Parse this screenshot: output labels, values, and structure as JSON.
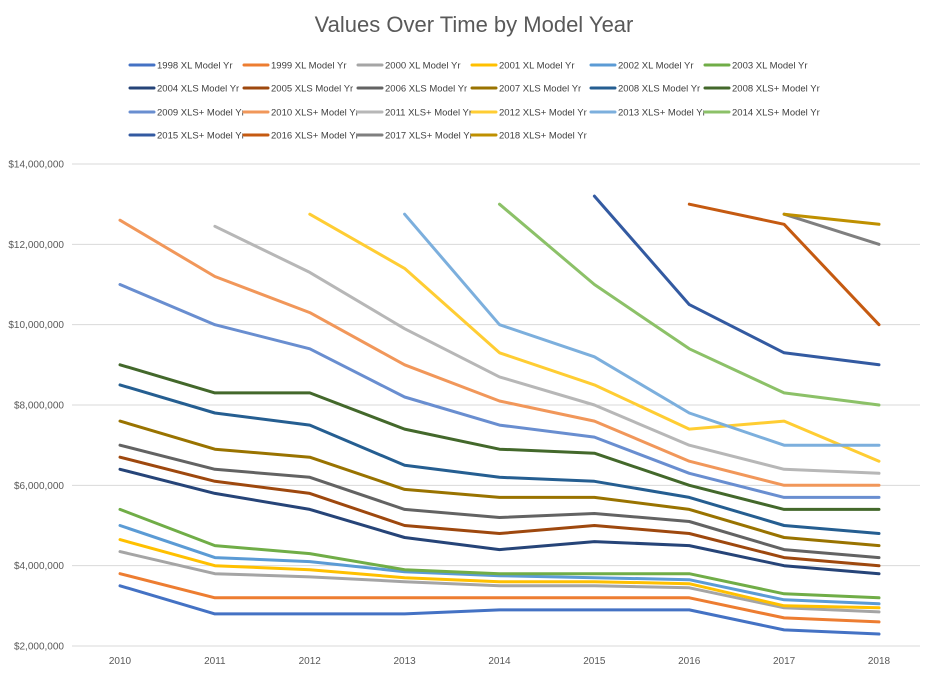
{
  "chart_data": {
    "type": "line",
    "title": "Values Over Time by Model Year",
    "xlabel": "",
    "ylabel": "",
    "x": [
      2010,
      2011,
      2012,
      2013,
      2014,
      2015,
      2016,
      2017,
      2018
    ],
    "x_tick_labels": [
      "2010",
      "2011",
      "2012",
      "2013",
      "2014",
      "2015",
      "2016",
      "2017",
      "2018"
    ],
    "ylim": [
      2000000,
      14000000
    ],
    "y_tick_labels": [
      "$2,000,000",
      "$4,000,000",
      "$6,000,000",
      "$8,000,000",
      "$10,000,000",
      "$12,000,000",
      "$14,000,000"
    ],
    "y_ticks": [
      2000000,
      4000000,
      6000000,
      8000000,
      10000000,
      12000000,
      14000000
    ],
    "grid": true,
    "legend_position": "top",
    "series": [
      {
        "name": "1998 XL Model Yr",
        "color": "#4472C4",
        "values": [
          3500000,
          2800000,
          2800000,
          2800000,
          2900000,
          2900000,
          2900000,
          2400000,
          2300000
        ]
      },
      {
        "name": "1999 XL Model Yr",
        "color": "#ED7D31",
        "values": [
          3800000,
          3200000,
          3200000,
          3200000,
          3200000,
          3200000,
          3200000,
          2700000,
          2600000
        ]
      },
      {
        "name": "2000 XL Model Yr",
        "color": "#A5A5A5",
        "values": [
          4350000,
          3800000,
          3720000,
          3600000,
          3500000,
          3500000,
          3450000,
          2950000,
          2850000
        ]
      },
      {
        "name": "2001 XL Model Yr",
        "color": "#FFC000",
        "values": [
          4650000,
          4000000,
          3900000,
          3700000,
          3600000,
          3600000,
          3550000,
          3000000,
          2950000
        ]
      },
      {
        "name": "2002 XL Model Yr",
        "color": "#5B9BD5",
        "values": [
          5000000,
          4200000,
          4100000,
          3850000,
          3750000,
          3700000,
          3650000,
          3150000,
          3050000
        ]
      },
      {
        "name": "2003 XL Model Yr",
        "color": "#70AD47",
        "values": [
          5400000,
          4500000,
          4300000,
          3900000,
          3800000,
          3800000,
          3800000,
          3300000,
          3200000
        ]
      },
      {
        "name": "2004 XLS Model Yr",
        "color": "#264478",
        "values": [
          6400000,
          5800000,
          5400000,
          4700000,
          4400000,
          4600000,
          4500000,
          4000000,
          3800000
        ]
      },
      {
        "name": "2005 XLS Model Yr",
        "color": "#9E480E",
        "values": [
          6700000,
          6100000,
          5800000,
          5000000,
          4800000,
          5000000,
          4800000,
          4200000,
          4000000
        ]
      },
      {
        "name": "2006 XLS Model Yr",
        "color": "#636363",
        "values": [
          7000000,
          6400000,
          6200000,
          5400000,
          5200000,
          5300000,
          5100000,
          4400000,
          4200000
        ]
      },
      {
        "name": "2007 XLS Model Yr",
        "color": "#997300",
        "values": [
          7600000,
          6900000,
          6700000,
          5900000,
          5700000,
          5700000,
          5400000,
          4700000,
          4500000
        ]
      },
      {
        "name": "2008 XLS Model Yr",
        "color": "#255E91",
        "values": [
          8500000,
          7800000,
          7500000,
          6500000,
          6200000,
          6100000,
          5700000,
          5000000,
          4800000
        ]
      },
      {
        "name": "2008 XLS+ Model Yr",
        "color": "#43682B",
        "values": [
          9000000,
          8300000,
          8300000,
          7400000,
          6900000,
          6800000,
          6000000,
          5400000,
          5400000
        ]
      },
      {
        "name": "2009 XLS+ Model Yr",
        "color": "#698ED0",
        "values": [
          11000000,
          10000000,
          9400000,
          8200000,
          7500000,
          7200000,
          6300000,
          5700000,
          5700000
        ]
      },
      {
        "name": "2010 XLS+ Model Yr",
        "color": "#F1975A",
        "values": [
          12600000,
          11200000,
          10300000,
          9000000,
          8100000,
          7600000,
          6600000,
          6000000,
          6000000
        ]
      },
      {
        "name": "2011 XLS+ Model Yr",
        "color": "#B7B7B7",
        "values": [
          null,
          12450000,
          11300000,
          9900000,
          8700000,
          8000000,
          7000000,
          6400000,
          6300000
        ]
      },
      {
        "name": "2012 XLS+ Model Yr",
        "color": "#FFCD33",
        "values": [
          null,
          null,
          12750000,
          11400000,
          9300000,
          8500000,
          7400000,
          7600000,
          6600000
        ]
      },
      {
        "name": "2013 XLS+ Model Yr",
        "color": "#7CAFDD",
        "values": [
          null,
          null,
          null,
          12750000,
          10000000,
          9200000,
          7800000,
          7000000,
          7000000
        ]
      },
      {
        "name": "2014 XLS+ Model Yr",
        "color": "#8CC168",
        "values": [
          null,
          null,
          null,
          null,
          13000000,
          11000000,
          9400000,
          8300000,
          8000000
        ]
      },
      {
        "name": "2015 XLS+ Model Yr",
        "color": "#335AA1",
        "values": [
          null,
          null,
          null,
          null,
          null,
          13200000,
          10500000,
          9300000,
          9000000
        ]
      },
      {
        "name": "2016 XLS+ Model Yr",
        "color": "#C55A11",
        "values": [
          null,
          null,
          null,
          null,
          null,
          null,
          13000000,
          12500000,
          10000000
        ]
      },
      {
        "name": "2017 XLS+ Model Yr",
        "color": "#7F7F7F",
        "values": [
          null,
          null,
          null,
          null,
          null,
          null,
          null,
          12750000,
          12000000
        ]
      },
      {
        "name": "2018 XLS+ Model Yr",
        "color": "#BF9000",
        "values": [
          null,
          null,
          null,
          null,
          null,
          null,
          null,
          12750000,
          12500000
        ]
      }
    ]
  }
}
